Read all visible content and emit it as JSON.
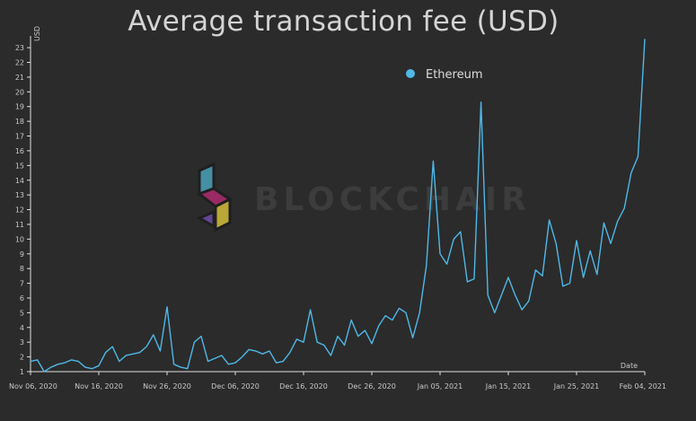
{
  "chart_data": {
    "type": "line",
    "title": "Average transaction fee (USD)",
    "ylabel": "USD",
    "xlabel": "Date",
    "ylim": [
      1,
      23.8
    ],
    "xlim": [
      "2020-11-06",
      "2021-02-04"
    ],
    "yticks": [
      1,
      2,
      3,
      4,
      5,
      6,
      7,
      8,
      9,
      10,
      11,
      12,
      13,
      14,
      15,
      16,
      17,
      18,
      19,
      20,
      21,
      22,
      23
    ],
    "xticks": [
      "2020-11-06",
      "2020-11-16",
      "2020-11-26",
      "2020-12-06",
      "2020-12-16",
      "2020-12-26",
      "2021-01-05",
      "2021-01-15",
      "2021-01-25",
      "2021-02-04"
    ],
    "xtick_labels": [
      "Nov 06, 2020",
      "Nov 16, 2020",
      "Nov 26, 2020",
      "Dec 06, 2020",
      "Dec 16, 2020",
      "Dec 26, 2020",
      "Jan 05, 2021",
      "Jan 15, 2021",
      "Jan 25, 2021",
      "Feb 04, 2021"
    ],
    "legend_position": "top-right",
    "grid": false,
    "series": [
      {
        "name": "Ethereum",
        "color": "#4fb8e8",
        "x": [
          "2020-11-06",
          "2020-11-07",
          "2020-11-08",
          "2020-11-09",
          "2020-11-10",
          "2020-11-11",
          "2020-11-12",
          "2020-11-13",
          "2020-11-14",
          "2020-11-15",
          "2020-11-16",
          "2020-11-17",
          "2020-11-18",
          "2020-11-19",
          "2020-11-20",
          "2020-11-21",
          "2020-11-22",
          "2020-11-23",
          "2020-11-24",
          "2020-11-25",
          "2020-11-26",
          "2020-11-27",
          "2020-11-28",
          "2020-11-29",
          "2020-11-30",
          "2020-12-01",
          "2020-12-02",
          "2020-12-03",
          "2020-12-04",
          "2020-12-05",
          "2020-12-06",
          "2020-12-07",
          "2020-12-08",
          "2020-12-09",
          "2020-12-10",
          "2020-12-11",
          "2020-12-12",
          "2020-12-13",
          "2020-12-14",
          "2020-12-15",
          "2020-12-16",
          "2020-12-17",
          "2020-12-18",
          "2020-12-19",
          "2020-12-20",
          "2020-12-21",
          "2020-12-22",
          "2020-12-23",
          "2020-12-24",
          "2020-12-25",
          "2020-12-26",
          "2020-12-27",
          "2020-12-28",
          "2020-12-29",
          "2020-12-30",
          "2020-12-31",
          "2021-01-01",
          "2021-01-02",
          "2021-01-03",
          "2021-01-04",
          "2021-01-05",
          "2021-01-06",
          "2021-01-07",
          "2021-01-08",
          "2021-01-09",
          "2021-01-10",
          "2021-01-11",
          "2021-01-12",
          "2021-01-13",
          "2021-01-14",
          "2021-01-15",
          "2021-01-16",
          "2021-01-17",
          "2021-01-18",
          "2021-01-19",
          "2021-01-20",
          "2021-01-21",
          "2021-01-22",
          "2021-01-23",
          "2021-01-24",
          "2021-01-25",
          "2021-01-26",
          "2021-01-27",
          "2021-01-28",
          "2021-01-29",
          "2021-01-30",
          "2021-01-31",
          "2021-02-01",
          "2021-02-02",
          "2021-02-03",
          "2021-02-04"
        ],
        "values": [
          1.7,
          1.8,
          1.0,
          1.3,
          1.5,
          1.6,
          1.8,
          1.7,
          1.3,
          1.2,
          1.4,
          2.3,
          2.7,
          1.7,
          2.1,
          2.2,
          2.3,
          2.7,
          3.5,
          2.4,
          5.4,
          1.5,
          1.3,
          1.2,
          3.0,
          3.4,
          1.7,
          1.9,
          2.1,
          1.5,
          1.6,
          2.0,
          2.5,
          2.4,
          2.2,
          2.4,
          1.6,
          1.7,
          2.3,
          3.2,
          3.0,
          5.2,
          3.0,
          2.8,
          2.1,
          3.4,
          2.8,
          4.5,
          3.4,
          3.8,
          2.9,
          4.1,
          4.8,
          4.5,
          5.3,
          5.0,
          3.3,
          5.0,
          8.2,
          15.3,
          9.0,
          8.3,
          10.0,
          10.5,
          7.1,
          7.3,
          19.3,
          6.2,
          5.0,
          6.2,
          7.4,
          6.2,
          5.2,
          5.8,
          7.9,
          7.5,
          11.3,
          9.7,
          6.8,
          7.0,
          9.9,
          7.4,
          9.2,
          7.6,
          11.1,
          9.7,
          11.2,
          12.1,
          14.5,
          15.6,
          23.6
        ]
      }
    ],
    "watermark": "BLOCKCHAIR"
  }
}
